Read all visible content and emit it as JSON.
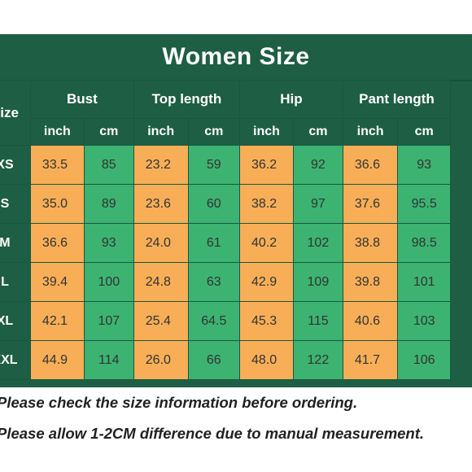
{
  "title": "Women Size",
  "columns": {
    "size": "Size",
    "groups": [
      "Bust",
      "Top length",
      "Hip",
      "Pant length"
    ],
    "units": [
      "inch",
      "cm"
    ]
  },
  "rows": [
    {
      "size": "XS",
      "values": [
        "33.5",
        "85",
        "23.2",
        "59",
        "36.2",
        "92",
        "36.6",
        "93"
      ]
    },
    {
      "size": "S",
      "values": [
        "35.0",
        "89",
        "23.6",
        "60",
        "38.2",
        "97",
        "37.6",
        "95.5"
      ]
    },
    {
      "size": "M",
      "values": [
        "36.6",
        "93",
        "24.0",
        "61",
        "40.2",
        "102",
        "38.8",
        "98.5"
      ]
    },
    {
      "size": "L",
      "values": [
        "39.4",
        "100",
        "24.8",
        "63",
        "42.9",
        "109",
        "39.8",
        "101"
      ]
    },
    {
      "size": "XL",
      "values": [
        "42.1",
        "107",
        "25.4",
        "64.5",
        "45.3",
        "115",
        "40.6",
        "103"
      ]
    },
    {
      "size": "XXL",
      "values": [
        "44.9",
        "114",
        "26.0",
        "66",
        "48.0",
        "122",
        "41.7",
        "106"
      ]
    }
  ],
  "notes": [
    "Please check the size information before ordering.",
    "Please allow 1-2CM difference due to manual measurement."
  ],
  "colors": {
    "header": "#1e5e45",
    "inch_cells": "#f7ae57",
    "cm_cells": "#3cb371"
  }
}
